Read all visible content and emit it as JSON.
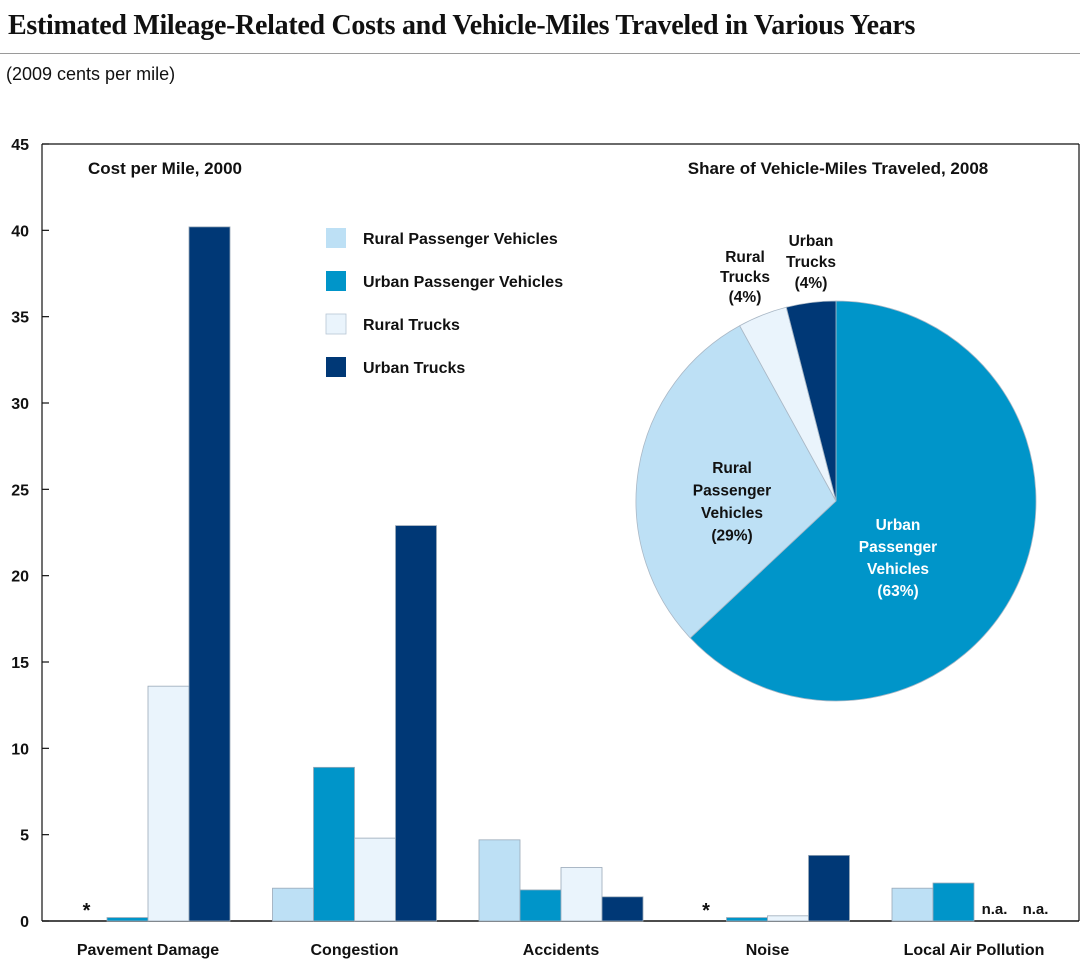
{
  "header": {
    "title": "Estimated Mileage-Related Costs and Vehicle-Miles Traveled in Various Years",
    "subtitle": "(2009 cents per mile)"
  },
  "colors": {
    "rural_passenger": "#bde0f5",
    "urban_passenger": "#0095c9",
    "rural_trucks": "#eaf4fc",
    "urban_trucks": "#003876"
  },
  "chart_data": [
    {
      "type": "bar",
      "title": "Cost per Mile, 2000",
      "categories": [
        "Pavement Damage",
        "Congestion",
        "Accidents",
        "Noise",
        "Local Air Pollution"
      ],
      "series": [
        {
          "name": "Rural Passenger Vehicles",
          "values": [
            0,
            1.9,
            4.7,
            0,
            1.9
          ]
        },
        {
          "name": "Urban Passenger Vehicles",
          "values": [
            0.2,
            8.9,
            1.8,
            0.2,
            2.2
          ]
        },
        {
          "name": "Rural Trucks",
          "values": [
            13.6,
            4.8,
            3.1,
            0.3,
            null
          ]
        },
        {
          "name": "Urban Trucks",
          "values": [
            40.2,
            22.9,
            1.4,
            3.8,
            null
          ]
        }
      ],
      "markers": [
        {
          "category": "Pavement Damage",
          "series": "Rural Passenger Vehicles",
          "text": "*"
        },
        {
          "category": "Noise",
          "series": "Rural Passenger Vehicles",
          "text": "*"
        },
        {
          "category": "Local Air Pollution",
          "series": "Rural Trucks",
          "text": "n.a."
        },
        {
          "category": "Local Air Pollution",
          "series": "Urban Trucks",
          "text": "n.a."
        }
      ],
      "ylim": [
        0,
        45
      ],
      "yticks": [
        0,
        5,
        10,
        15,
        20,
        25,
        30,
        35,
        40,
        45
      ],
      "grid": false,
      "legend": "top-left"
    },
    {
      "type": "pie",
      "title": "Share of Vehicle-Miles Traveled, 2008",
      "slices": [
        {
          "label": [
            "Urban",
            "Passenger",
            "Vehicles"
          ],
          "pct_label": "(63%)",
          "value": 63,
          "color_key": "urban_passenger",
          "text_color": "#ffffff"
        },
        {
          "label": [
            "Rural",
            "Passenger",
            "Vehicles"
          ],
          "pct_label": "(29%)",
          "value": 29,
          "color_key": "rural_passenger",
          "text_color": "#111111"
        },
        {
          "label": [
            "Rural",
            "Trucks"
          ],
          "pct_label": "(4%)",
          "value": 4,
          "color_key": "rural_trucks",
          "text_color": "#111111"
        },
        {
          "label": [
            "Urban",
            "Trucks"
          ],
          "pct_label": "(4%)",
          "value": 4,
          "color_key": "urban_trucks",
          "text_color": "#111111"
        }
      ]
    }
  ]
}
